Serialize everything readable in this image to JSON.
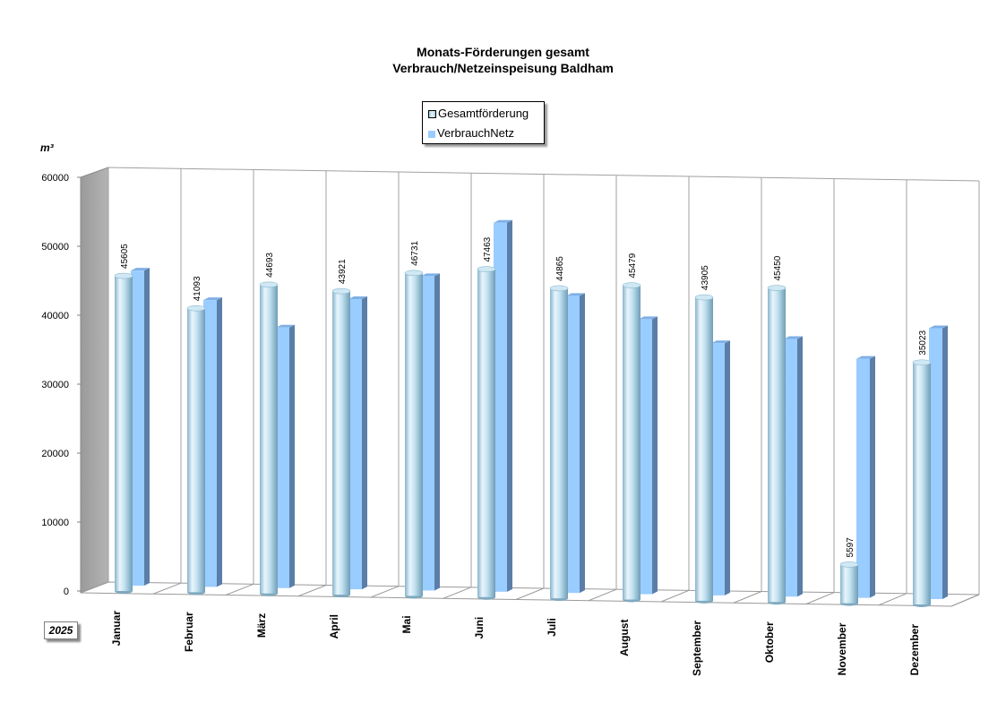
{
  "titles": {
    "line1": "Monats-Förderungen gesamt",
    "line2": "Verbrauch/Netzeinspeisung Baldham"
  },
  "unit_label": "m³",
  "year_label": "2025",
  "legend": {
    "series1": "Gesamtförderung",
    "series2": "VerbrauchNetz"
  },
  "colors": {
    "series1_light": "#eaf6fc",
    "series1_mid": "#a9d3e6",
    "series1_dark": "#5f8fa8",
    "series2_face": "#99ccff",
    "series2_side": "#5b7ea8",
    "series2_top": "#7fb0e6",
    "wall": "#a6a6a6",
    "grid": "#a0a0a0"
  },
  "chart_data": {
    "type": "bar",
    "style": "3d-clustered-column",
    "categories": [
      "Januar",
      "Februar",
      "März",
      "April",
      "Mai",
      "Juni",
      "Juli",
      "August",
      "September",
      "Oktober",
      "November",
      "Dezember"
    ],
    "series": [
      {
        "name": "Gesamtförderung",
        "shape": "cylinder",
        "values": [
          45605,
          41093,
          44693,
          43921,
          46731,
          47463,
          44865,
          45479,
          43905,
          45450,
          5597,
          35023
        ],
        "data_labels": [
          "45605",
          "41093",
          "44693",
          "43921",
          "46731",
          "47463",
          "44865",
          "45479",
          "43905",
          "45450",
          "5597",
          "35023"
        ]
      },
      {
        "name": "VerbrauchNetz",
        "shape": "box",
        "values": [
          45600,
          41500,
          37700,
          42000,
          45500,
          53400,
          43000,
          39800,
          36500,
          37300,
          34600,
          39200
        ]
      }
    ],
    "ylim": [
      0,
      60000
    ],
    "yticks": [
      "0",
      "10000",
      "20000",
      "30000",
      "40000",
      "50000",
      "60000"
    ],
    "ylabel": "m³",
    "grid": "vertical",
    "legend_position": "top"
  }
}
